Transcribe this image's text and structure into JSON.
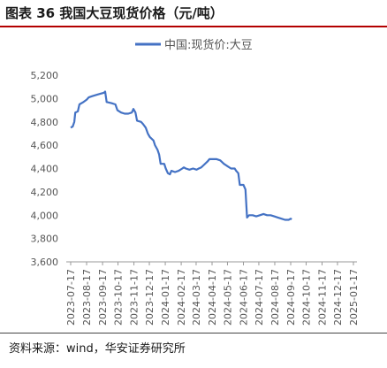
{
  "header": {
    "title": "图表 36 我国大豆现货价格（元/吨）"
  },
  "footer": {
    "source": "资料来源：wind，华安证券研究所"
  },
  "chart_data": {
    "type": "line",
    "title": "",
    "xlabel": "",
    "ylabel": "",
    "ylim": [
      3600,
      5200
    ],
    "yticks": [
      3600,
      3800,
      4000,
      4200,
      4400,
      4600,
      4800,
      5000,
      5200
    ],
    "ytick_labels": [
      "3,600",
      "3,800",
      "4,000",
      "4,200",
      "4,400",
      "4,600",
      "4,800",
      "5,000",
      "5,200"
    ],
    "xticks": [
      "2023-07-17",
      "2023-08-17",
      "2023-09-17",
      "2023-10-17",
      "2023-11-17",
      "2023-12-17",
      "2024-01-17",
      "2024-02-17",
      "2024-03-17",
      "2024-04-17",
      "2024-05-17",
      "2024-06-17",
      "2024-07-17",
      "2024-08-17",
      "2024-09-17",
      "2024-10-17",
      "2024-11-17",
      "2024-12-17",
      "2025-01-17"
    ],
    "grid": false,
    "legend": "top-center",
    "color": "#4472c4",
    "series": [
      {
        "name": "中国:现货价:大豆",
        "points": [
          [
            "2023-07-17",
            4750
          ],
          [
            "2023-07-21",
            4760
          ],
          [
            "2023-07-24",
            4800
          ],
          [
            "2023-07-26",
            4880
          ],
          [
            "2023-07-31",
            4890
          ],
          [
            "2023-08-03",
            4950
          ],
          [
            "2023-08-11",
            4970
          ],
          [
            "2023-08-17",
            4990
          ],
          [
            "2023-08-21",
            5010
          ],
          [
            "2023-08-28",
            5020
          ],
          [
            "2023-09-04",
            5030
          ],
          [
            "2023-09-12",
            5040
          ],
          [
            "2023-09-20",
            5050
          ],
          [
            "2023-09-22",
            5060
          ],
          [
            "2023-09-25",
            4970
          ],
          [
            "2023-10-05",
            4960
          ],
          [
            "2023-10-12",
            4950
          ],
          [
            "2023-10-16",
            4900
          ],
          [
            "2023-10-23",
            4880
          ],
          [
            "2023-10-30",
            4870
          ],
          [
            "2023-11-06",
            4870
          ],
          [
            "2023-11-13",
            4880
          ],
          [
            "2023-11-16",
            4910
          ],
          [
            "2023-11-20",
            4880
          ],
          [
            "2023-11-23",
            4810
          ],
          [
            "2023-12-01",
            4800
          ],
          [
            "2023-12-05",
            4780
          ],
          [
            "2023-12-10",
            4750
          ],
          [
            "2023-12-14",
            4700
          ],
          [
            "2023-12-18",
            4670
          ],
          [
            "2023-12-25",
            4640
          ],
          [
            "2023-12-28",
            4600
          ],
          [
            "2024-01-02",
            4560
          ],
          [
            "2024-01-05",
            4520
          ],
          [
            "2024-01-08",
            4440
          ],
          [
            "2024-01-15",
            4440
          ],
          [
            "2024-01-18",
            4400
          ],
          [
            "2024-01-22",
            4360
          ],
          [
            "2024-01-26",
            4350
          ],
          [
            "2024-01-29",
            4380
          ],
          [
            "2024-02-05",
            4370
          ],
          [
            "2024-02-12",
            4380
          ],
          [
            "2024-02-19",
            4400
          ],
          [
            "2024-02-22",
            4410
          ],
          [
            "2024-02-26",
            4400
          ],
          [
            "2024-03-04",
            4390
          ],
          [
            "2024-03-11",
            4400
          ],
          [
            "2024-03-18",
            4390
          ],
          [
            "2024-03-22",
            4400
          ],
          [
            "2024-03-27",
            4410
          ],
          [
            "2024-04-01",
            4430
          ],
          [
            "2024-04-08",
            4460
          ],
          [
            "2024-04-12",
            4480
          ],
          [
            "2024-04-19",
            4480
          ],
          [
            "2024-04-26",
            4480
          ],
          [
            "2024-05-03",
            4470
          ],
          [
            "2024-05-10",
            4440
          ],
          [
            "2024-05-17",
            4420
          ],
          [
            "2024-05-24",
            4400
          ],
          [
            "2024-05-31",
            4400
          ],
          [
            "2024-06-03",
            4380
          ],
          [
            "2024-06-07",
            4360
          ],
          [
            "2024-06-10",
            4260
          ],
          [
            "2024-06-17",
            4260
          ],
          [
            "2024-06-21",
            4220
          ],
          [
            "2024-06-24",
            3980
          ],
          [
            "2024-06-28",
            4000
          ],
          [
            "2024-07-05",
            4000
          ],
          [
            "2024-07-12",
            3990
          ],
          [
            "2024-07-19",
            4000
          ],
          [
            "2024-07-26",
            4010
          ],
          [
            "2024-08-02",
            4000
          ],
          [
            "2024-08-09",
            4000
          ],
          [
            "2024-08-16",
            3990
          ],
          [
            "2024-08-23",
            3980
          ],
          [
            "2024-08-30",
            3970
          ],
          [
            "2024-09-06",
            3960
          ],
          [
            "2024-09-13",
            3960
          ],
          [
            "2024-09-17",
            3970
          ],
          [
            "2024-09-19",
            3965
          ]
        ]
      }
    ]
  }
}
